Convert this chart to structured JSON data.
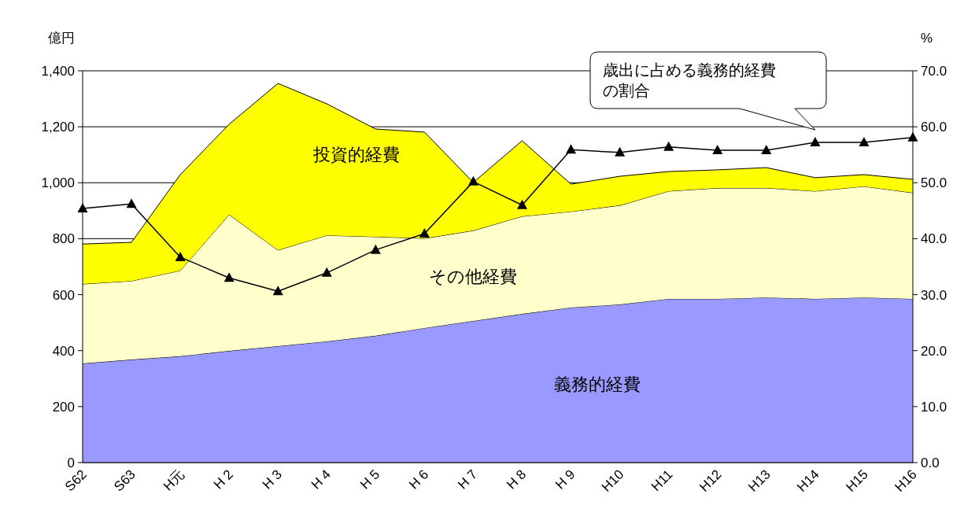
{
  "chart_data": {
    "type": "area",
    "stacked": true,
    "ylabel": "億円",
    "y2label": "%",
    "categories": [
      "S62",
      "S63",
      "H元",
      "H 2",
      "H 3",
      "H 4",
      "H 5",
      "H 6",
      "H 7",
      "H 8",
      "H 9",
      "H10",
      "H11",
      "H12",
      "H13",
      "H14",
      "H15",
      "H16"
    ],
    "series": [
      {
        "name": "義務的経費",
        "color": "#9999ff",
        "values": [
          354,
          368,
          380,
          399,
          416,
          433,
          453,
          481,
          506,
          531,
          554,
          565,
          585,
          585,
          590,
          585,
          590,
          585
        ]
      },
      {
        "name": "その他経費",
        "color": "#ffffcc",
        "values": [
          284,
          281,
          306,
          487,
          343,
          379,
          354,
          320,
          323,
          349,
          343,
          354,
          385,
          396,
          391,
          385,
          397,
          379
        ]
      },
      {
        "name": "投資的経費",
        "color": "#ffff00",
        "values": [
          143,
          138,
          343,
          323,
          596,
          470,
          385,
          380,
          172,
          270,
          98,
          104,
          70,
          65,
          73,
          48,
          42,
          48
        ]
      },
      {
        "name": "歳出に占める義務的経費の割合",
        "type": "line",
        "axis": "y2",
        "color": "#000000",
        "marker": "triangle",
        "values": [
          45.4,
          46.2,
          36.7,
          33.0,
          30.6,
          33.9,
          38.0,
          40.9,
          50.2,
          46.0,
          55.9,
          55.4,
          56.4,
          55.8,
          55.8,
          57.2,
          57.2,
          58.1
        ]
      }
    ],
    "ylim": [
      0,
      1400
    ],
    "yticks": [
      0,
      200,
      400,
      600,
      800,
      {
        "value": 1000,
        "label": "1,000"
      },
      {
        "value": 1200,
        "label": "1,200"
      },
      {
        "value": 1400,
        "label": "1,400"
      }
    ],
    "y2lim": [
      0,
      70
    ],
    "y2ticks": [
      {
        "value": 0,
        "label": "0.0"
      },
      {
        "value": 10,
        "label": "10.0"
      },
      {
        "value": 20,
        "label": "20.0"
      },
      {
        "value": 30,
        "label": "30.0"
      },
      {
        "value": 40,
        "label": "40.0"
      },
      {
        "value": 50,
        "label": "50.0"
      },
      {
        "value": 60,
        "label": "60.0"
      },
      {
        "value": 70,
        "label": "70.0"
      }
    ],
    "grid": "y"
  }
}
